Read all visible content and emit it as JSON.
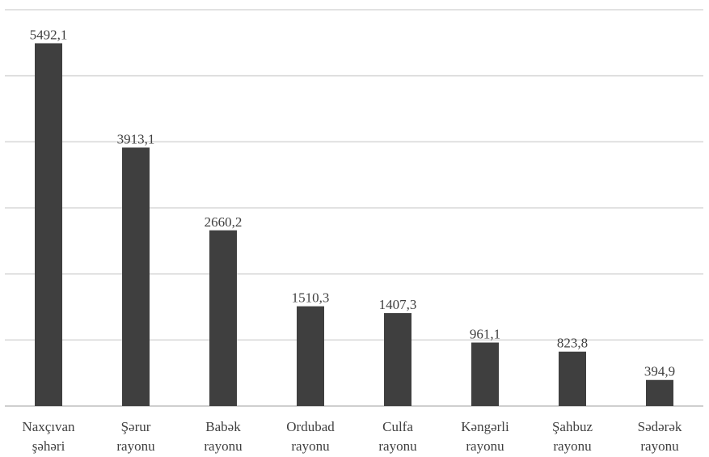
{
  "chart_data": {
    "type": "bar",
    "categories": [
      [
        "Naxçıvan",
        "şəhəri"
      ],
      [
        "Şərur",
        "rayonu"
      ],
      [
        "Babək",
        "rayonu"
      ],
      [
        "Ordubad",
        "rayonu"
      ],
      [
        "Culfa",
        "rayonu"
      ],
      [
        "Kəngərli",
        "rayonu"
      ],
      [
        "Şahbuz",
        "rayonu"
      ],
      [
        "Sədərək",
        "rayonu"
      ]
    ],
    "values": [
      5492.1,
      3913.1,
      2660.2,
      1510.3,
      1407.3,
      961.1,
      823.8,
      394.9
    ],
    "value_labels": [
      "5492,1",
      "3913,1",
      "2660,2",
      "1510,3",
      "1407,3",
      "961,1",
      "823,8",
      "394,9"
    ],
    "ylim": [
      0,
      6000
    ],
    "gridlines": [
      1000,
      2000,
      3000,
      4000,
      5000,
      6000
    ],
    "grid": true,
    "bar_color": "#3f3f3f",
    "title": "",
    "xlabel": "",
    "ylabel": ""
  }
}
